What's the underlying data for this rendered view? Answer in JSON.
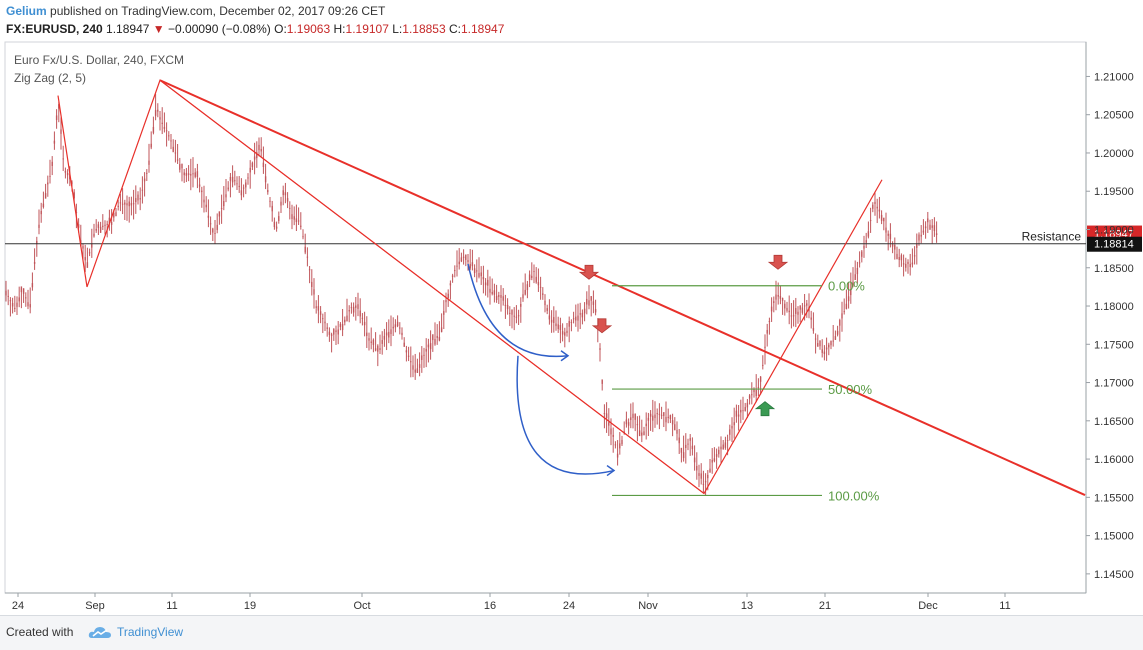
{
  "header": {
    "author": "Gelium",
    "published": "published on TradingView.com, December 02, 2017 09:26 CET",
    "symbol": "FX:EURUSD, 240",
    "last": "1.18947",
    "change": "−0.00090 (−0.08%)",
    "open_label": "O:",
    "open": "1.19063",
    "high_label": "H:",
    "high": "1.19107",
    "low_label": "L:",
    "low": "1.18853",
    "close_label": "C:",
    "close": "1.18947"
  },
  "legend": {
    "instrument": "Euro Fx/U.S. Dollar, 240, FXCM",
    "indicator": "Zig Zag (2, 5)"
  },
  "footer": {
    "created_with": "Created with",
    "brand": "TradingView",
    "logo_icon": "tradingview-cloud-icon"
  },
  "colors": {
    "candle": "#c0555a",
    "trendline": "#e8302a",
    "arrow_blue": "#2f5fc8",
    "fib": "#5b9b45",
    "arrow_down": "#d9534f",
    "arrow_up": "#3a9a53",
    "price_tag": "#d62728"
  },
  "chart_data": {
    "type": "candlestick",
    "x_ticks": [
      "24",
      "Sep",
      "11",
      "19",
      "Oct",
      "16",
      "24",
      "Nov",
      "13",
      "21",
      "Dec",
      "11"
    ],
    "y_ticks": [
      "1.14500",
      "1.15000",
      "1.15500",
      "1.16000",
      "1.16500",
      "1.17000",
      "1.17500",
      "1.18000",
      "1.18500",
      "1.19000",
      "1.19500",
      "1.20000",
      "1.20500",
      "1.21000"
    ],
    "ylim": [
      1.1425,
      1.2145
    ],
    "price_series": [
      [
        0,
        1.1775
      ],
      [
        6,
        1.182
      ],
      [
        14,
        1.1795
      ],
      [
        22,
        1.182
      ],
      [
        30,
        1.18
      ],
      [
        38,
        1.19
      ],
      [
        46,
        1.195
      ],
      [
        52,
        1.198
      ],
      [
        58,
        1.207
      ],
      [
        64,
        1.198
      ],
      [
        72,
        1.196
      ],
      [
        80,
        1.189
      ],
      [
        87,
        1.1855
      ],
      [
        95,
        1.19
      ],
      [
        103,
        1.1905
      ],
      [
        112,
        1.191
      ],
      [
        120,
        1.1935
      ],
      [
        130,
        1.193
      ],
      [
        140,
        1.194
      ],
      [
        148,
        1.198
      ],
      [
        156,
        1.206
      ],
      [
        162,
        1.204
      ],
      [
        170,
        1.202
      ],
      [
        178,
        1.199
      ],
      [
        186,
        1.197
      ],
      [
        196,
        1.1975
      ],
      [
        206,
        1.193
      ],
      [
        214,
        1.189
      ],
      [
        222,
        1.193
      ],
      [
        232,
        1.197
      ],
      [
        242,
        1.195
      ],
      [
        252,
        1.198
      ],
      [
        260,
        1.2015
      ],
      [
        268,
        1.195
      ],
      [
        276,
        1.19
      ],
      [
        284,
        1.195
      ],
      [
        292,
        1.192
      ],
      [
        300,
        1.191
      ],
      [
        308,
        1.186
      ],
      [
        316,
        1.18
      ],
      [
        324,
        1.178
      ],
      [
        332,
        1.176
      ],
      [
        342,
        1.1775
      ],
      [
        352,
        1.18
      ],
      [
        360,
        1.1795
      ],
      [
        368,
        1.176
      ],
      [
        378,
        1.174
      ],
      [
        388,
        1.1765
      ],
      [
        398,
        1.178
      ],
      [
        408,
        1.1735
      ],
      [
        416,
        1.1715
      ],
      [
        424,
        1.1735
      ],
      [
        432,
        1.1755
      ],
      [
        440,
        1.176
      ],
      [
        446,
        1.1805
      ],
      [
        454,
        1.1845
      ],
      [
        462,
        1.1865
      ],
      [
        470,
        1.1855
      ],
      [
        478,
        1.1845
      ],
      [
        486,
        1.183
      ],
      [
        494,
        1.1815
      ],
      [
        502,
        1.181
      ],
      [
        510,
        1.179
      ],
      [
        518,
        1.1785
      ],
      [
        526,
        1.1825
      ],
      [
        534,
        1.1845
      ],
      [
        542,
        1.182
      ],
      [
        550,
        1.1785
      ],
      [
        558,
        1.177
      ],
      [
        566,
        1.1765
      ],
      [
        574,
        1.1785
      ],
      [
        582,
        1.179
      ],
      [
        590,
        1.181
      ],
      [
        596,
        1.1795
      ],
      [
        600,
        1.1745
      ],
      [
        604,
        1.166
      ],
      [
        610,
        1.1645
      ],
      [
        618,
        1.1605
      ],
      [
        626,
        1.1645
      ],
      [
        634,
        1.1655
      ],
      [
        642,
        1.163
      ],
      [
        650,
        1.1655
      ],
      [
        658,
        1.166
      ],
      [
        666,
        1.1655
      ],
      [
        674,
        1.165
      ],
      [
        682,
        1.1605
      ],
      [
        690,
        1.1625
      ],
      [
        698,
        1.1585
      ],
      [
        704,
        1.1565
      ],
      [
        712,
        1.1595
      ],
      [
        720,
        1.1615
      ],
      [
        728,
        1.1625
      ],
      [
        736,
        1.1655
      ],
      [
        744,
        1.1665
      ],
      [
        752,
        1.1685
      ],
      [
        760,
        1.1695
      ],
      [
        766,
        1.1755
      ],
      [
        770,
        1.1785
      ],
      [
        776,
        1.1815
      ],
      [
        784,
        1.1805
      ],
      [
        792,
        1.1785
      ],
      [
        800,
        1.1795
      ],
      [
        808,
        1.1805
      ],
      [
        816,
        1.1755
      ],
      [
        824,
        1.174
      ],
      [
        832,
        1.175
      ],
      [
        840,
        1.1775
      ],
      [
        848,
        1.181
      ],
      [
        856,
        1.1845
      ],
      [
        862,
        1.1865
      ],
      [
        868,
        1.1895
      ],
      [
        874,
        1.1935
      ],
      [
        880,
        1.1925
      ],
      [
        888,
        1.1895
      ],
      [
        896,
        1.187
      ],
      [
        904,
        1.1855
      ],
      [
        912,
        1.1855
      ],
      [
        920,
        1.189
      ],
      [
        928,
        1.191
      ],
      [
        936,
        1.1895
      ]
    ],
    "zigzag_lines": [
      [
        [
          58,
          1.2075
        ],
        [
          87,
          1.1825
        ],
        [
          160,
          1.2095
        ],
        [
          704,
          1.1555
        ],
        [
          882,
          1.1965
        ]
      ]
    ],
    "trendline": [
      [
        160,
        1.2095
      ],
      [
        1085,
        1.1553
      ]
    ],
    "support_line_thin": [
      [
        160,
        1.2095
      ],
      [
        704,
        1.1555
      ]
    ],
    "resistance_level": 1.18814,
    "resistance_label": "Resistance",
    "price_tag_last": "1.18947",
    "price_tag_resistance": "1.18814",
    "fib_levels": [
      {
        "label": "0.00%",
        "price": 1.18265,
        "x1": 612,
        "x2": 822
      },
      {
        "label": "50.00%",
        "price": 1.16915,
        "x1": 612,
        "x2": 822
      },
      {
        "label": "100.00%",
        "price": 1.15525,
        "x1": 612,
        "x2": 822
      }
    ],
    "markers": [
      {
        "type": "down",
        "x": 589,
        "price": 1.1835
      },
      {
        "type": "down",
        "x": 602,
        "price": 1.1765
      },
      {
        "type": "down",
        "x": 778,
        "price": 1.1848
      },
      {
        "type": "up",
        "x": 765,
        "price": 1.1675
      }
    ],
    "curved_arrows": [
      {
        "from": [
          468,
          1.1855
        ],
        "ctrl": [
          490,
          1.175
        ],
        "to": [
          568,
          1.1735
        ]
      },
      {
        "from": [
          518,
          1.1735
        ],
        "ctrl": [
          508,
          1.158
        ],
        "to": [
          614,
          1.1585
        ]
      }
    ]
  }
}
